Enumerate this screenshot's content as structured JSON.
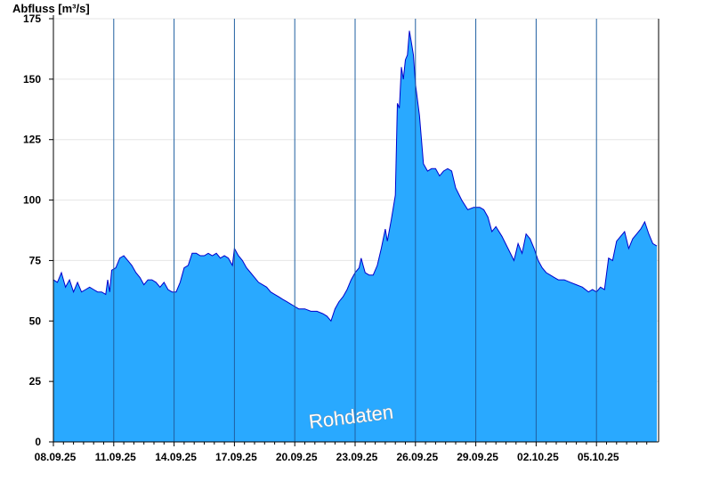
{
  "chart_data": {
    "type": "area",
    "ylabel": "Abfluss [m³/s]",
    "xlabel": "",
    "ylim": [
      0,
      175
    ],
    "yticks": [
      0,
      25,
      50,
      75,
      100,
      125,
      150,
      175
    ],
    "grid": true,
    "x_range": [
      "08.09.25",
      "07.10.25"
    ],
    "x_ticks": [
      {
        "label": "08.09.25",
        "day": 0
      },
      {
        "label": "11.09.25",
        "day": 3
      },
      {
        "label": "14.09.25",
        "day": 6
      },
      {
        "label": "17.09.25",
        "day": 9
      },
      {
        "label": "20.09.25",
        "day": 12
      },
      {
        "label": "23.09.25",
        "day": 15
      },
      {
        "label": "26.09.25",
        "day": 18
      },
      {
        "label": "29.09.25",
        "day": 21
      },
      {
        "label": "02.10.25",
        "day": 24
      },
      {
        "label": "05.10.25",
        "day": 27
      }
    ],
    "series": [
      {
        "fill": "#29a9ff",
        "line": "#0000cc",
        "points": [
          [
            0.0,
            67
          ],
          [
            0.2,
            66
          ],
          [
            0.4,
            70
          ],
          [
            0.6,
            64
          ],
          [
            0.8,
            67
          ],
          [
            1.0,
            62
          ],
          [
            1.2,
            66
          ],
          [
            1.4,
            62
          ],
          [
            1.6,
            63
          ],
          [
            1.8,
            64
          ],
          [
            2.0,
            63
          ],
          [
            2.2,
            62
          ],
          [
            2.4,
            62
          ],
          [
            2.6,
            61
          ],
          [
            2.7,
            67
          ],
          [
            2.8,
            62
          ],
          [
            2.9,
            71
          ],
          [
            3.1,
            72
          ],
          [
            3.3,
            76
          ],
          [
            3.5,
            77
          ],
          [
            3.7,
            75
          ],
          [
            3.9,
            73
          ],
          [
            4.1,
            70
          ],
          [
            4.3,
            68
          ],
          [
            4.5,
            65
          ],
          [
            4.7,
            67
          ],
          [
            4.9,
            67
          ],
          [
            5.1,
            66
          ],
          [
            5.3,
            64
          ],
          [
            5.5,
            66
          ],
          [
            5.7,
            63
          ],
          [
            5.9,
            62
          ],
          [
            6.1,
            62
          ],
          [
            6.3,
            66
          ],
          [
            6.5,
            72
          ],
          [
            6.7,
            73
          ],
          [
            6.9,
            78
          ],
          [
            7.1,
            78
          ],
          [
            7.3,
            77
          ],
          [
            7.5,
            77
          ],
          [
            7.7,
            78
          ],
          [
            7.9,
            77
          ],
          [
            8.1,
            78
          ],
          [
            8.3,
            76
          ],
          [
            8.5,
            77
          ],
          [
            8.7,
            76
          ],
          [
            8.9,
            73
          ],
          [
            9.0,
            80
          ],
          [
            9.2,
            77
          ],
          [
            9.4,
            75
          ],
          [
            9.6,
            72
          ],
          [
            9.8,
            70
          ],
          [
            10.0,
            68
          ],
          [
            10.2,
            66
          ],
          [
            10.4,
            65
          ],
          [
            10.6,
            64
          ],
          [
            10.8,
            62
          ],
          [
            11.0,
            61
          ],
          [
            11.2,
            60
          ],
          [
            11.4,
            59
          ],
          [
            11.6,
            58
          ],
          [
            11.8,
            57
          ],
          [
            12.0,
            56
          ],
          [
            12.2,
            55
          ],
          [
            12.5,
            55
          ],
          [
            12.8,
            54
          ],
          [
            13.1,
            54
          ],
          [
            13.4,
            53
          ],
          [
            13.6,
            52
          ],
          [
            13.8,
            50
          ],
          [
            14.0,
            55
          ],
          [
            14.2,
            58
          ],
          [
            14.4,
            60
          ],
          [
            14.6,
            63
          ],
          [
            14.8,
            67
          ],
          [
            15.0,
            70
          ],
          [
            15.2,
            72
          ],
          [
            15.3,
            76
          ],
          [
            15.4,
            73
          ],
          [
            15.5,
            70
          ],
          [
            15.7,
            69
          ],
          [
            15.9,
            69
          ],
          [
            16.1,
            73
          ],
          [
            16.3,
            80
          ],
          [
            16.5,
            88
          ],
          [
            16.6,
            83
          ],
          [
            16.8,
            92
          ],
          [
            17.0,
            102
          ],
          [
            17.1,
            140
          ],
          [
            17.2,
            138
          ],
          [
            17.3,
            155
          ],
          [
            17.4,
            150
          ],
          [
            17.5,
            158
          ],
          [
            17.6,
            160
          ],
          [
            17.7,
            170
          ],
          [
            17.8,
            165
          ],
          [
            17.9,
            160
          ],
          [
            18.0,
            148
          ],
          [
            18.2,
            135
          ],
          [
            18.4,
            115
          ],
          [
            18.6,
            112
          ],
          [
            18.8,
            113
          ],
          [
            19.0,
            113
          ],
          [
            19.2,
            110
          ],
          [
            19.4,
            112
          ],
          [
            19.6,
            113
          ],
          [
            19.8,
            112
          ],
          [
            20.0,
            105
          ],
          [
            20.3,
            100
          ],
          [
            20.6,
            96
          ],
          [
            20.9,
            97
          ],
          [
            21.2,
            97
          ],
          [
            21.4,
            96
          ],
          [
            21.6,
            93
          ],
          [
            21.8,
            87
          ],
          [
            22.0,
            89
          ],
          [
            22.3,
            85
          ],
          [
            22.6,
            80
          ],
          [
            22.9,
            75
          ],
          [
            23.1,
            82
          ],
          [
            23.3,
            78
          ],
          [
            23.5,
            86
          ],
          [
            23.7,
            84
          ],
          [
            23.9,
            80
          ],
          [
            24.1,
            75
          ],
          [
            24.3,
            72
          ],
          [
            24.5,
            70
          ],
          [
            24.7,
            69
          ],
          [
            24.9,
            68
          ],
          [
            25.1,
            67
          ],
          [
            25.4,
            67
          ],
          [
            25.7,
            66
          ],
          [
            26.0,
            65
          ],
          [
            26.3,
            64
          ],
          [
            26.6,
            62
          ],
          [
            26.8,
            63
          ],
          [
            27.0,
            62
          ],
          [
            27.2,
            64
          ],
          [
            27.4,
            63
          ],
          [
            27.6,
            76
          ],
          [
            27.8,
            75
          ],
          [
            28.0,
            83
          ],
          [
            28.2,
            85
          ],
          [
            28.4,
            87
          ],
          [
            28.6,
            80
          ],
          [
            28.8,
            84
          ],
          [
            29.0,
            86
          ],
          [
            29.2,
            88
          ],
          [
            29.4,
            91
          ],
          [
            29.6,
            86
          ],
          [
            29.8,
            82
          ],
          [
            30.0,
            81
          ]
        ]
      }
    ],
    "watermark": "Rohdaten"
  }
}
